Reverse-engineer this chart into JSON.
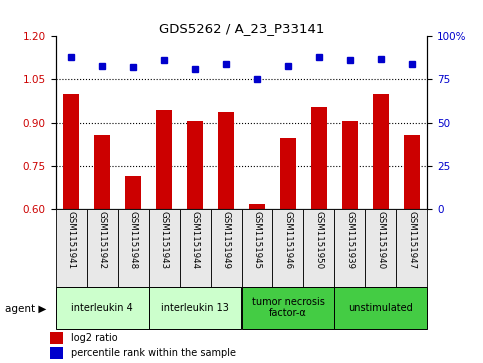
{
  "title": "GDS5262 / A_23_P33141",
  "samples": [
    "GSM1151941",
    "GSM1151942",
    "GSM1151948",
    "GSM1151943",
    "GSM1151944",
    "GSM1151949",
    "GSM1151945",
    "GSM1151946",
    "GSM1151950",
    "GSM1151939",
    "GSM1151940",
    "GSM1151947"
  ],
  "log2_ratio": [
    1.0,
    0.855,
    0.715,
    0.945,
    0.905,
    0.935,
    0.615,
    0.845,
    0.955,
    0.905,
    1.0,
    0.855
  ],
  "percentile": [
    88,
    83,
    82,
    86,
    81,
    84,
    75,
    83,
    88,
    86,
    87,
    84
  ],
  "ylim_left": [
    0.6,
    1.2
  ],
  "ylim_right": [
    0,
    100
  ],
  "yticks_left": [
    0.6,
    0.75,
    0.9,
    1.05,
    1.2
  ],
  "yticks_right": [
    0,
    25,
    50,
    75,
    100
  ],
  "hlines": [
    0.75,
    0.9,
    1.05
  ],
  "bar_color": "#cc0000",
  "dot_color": "#0000cc",
  "bg_color": "#e8e8e8",
  "agent_groups": [
    {
      "label": "interleukin 4",
      "start": 0,
      "end": 3,
      "color": "#ccffcc"
    },
    {
      "label": "interleukin 13",
      "start": 3,
      "end": 6,
      "color": "#ccffcc"
    },
    {
      "label": "tumor necrosis\nfactor-α",
      "start": 6,
      "end": 9,
      "color": "#44cc44"
    },
    {
      "label": "unstimulated",
      "start": 9,
      "end": 12,
      "color": "#44cc44"
    }
  ],
  "legend_labels": [
    "log2 ratio",
    "percentile rank within the sample"
  ],
  "bar_width": 0.5
}
